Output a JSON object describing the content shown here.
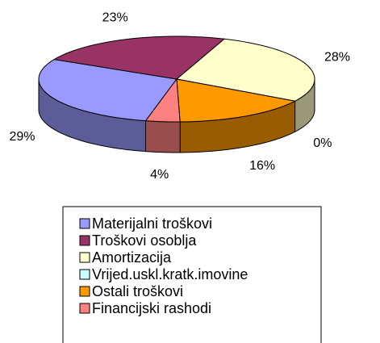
{
  "chart_data": {
    "type": "pie3d",
    "categories": [
      "Materijalni troškovi",
      "Troškovi osoblja",
      "Amortizacija",
      "Vrijed.uskl.kratk.imovine",
      "Ostali troškovi",
      "Financijski rashodi"
    ],
    "values": [
      29,
      23,
      28,
      0,
      16,
      4
    ],
    "value_labels": [
      "29%",
      "23%",
      "28%",
      "0%",
      "16%",
      "4%"
    ],
    "colors": [
      "#9999ff",
      "#993366",
      "#ffffcc",
      "#ccffff",
      "#ff9900",
      "#ff8080"
    ],
    "legend": "bottom"
  }
}
